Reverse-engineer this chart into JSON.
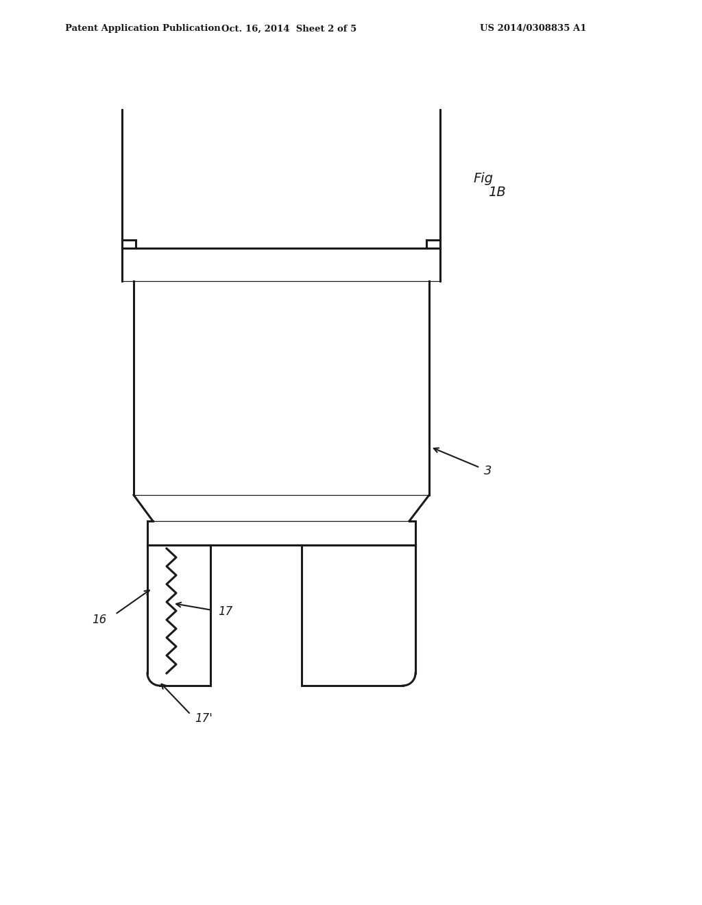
{
  "bg_color": "#ffffff",
  "line_color": "#1a1a1a",
  "header_left": "Patent Application Publication",
  "header_mid": "Oct. 16, 2014  Sheet 2 of 5",
  "header_right": "US 2014/0308835 A1",
  "fig_label": "Fig 1B",
  "label_3": "3",
  "label_16": "16",
  "label_17": "17",
  "label_17prime": "17'",
  "lw_main": 2.2,
  "lw_thin": 0.9
}
